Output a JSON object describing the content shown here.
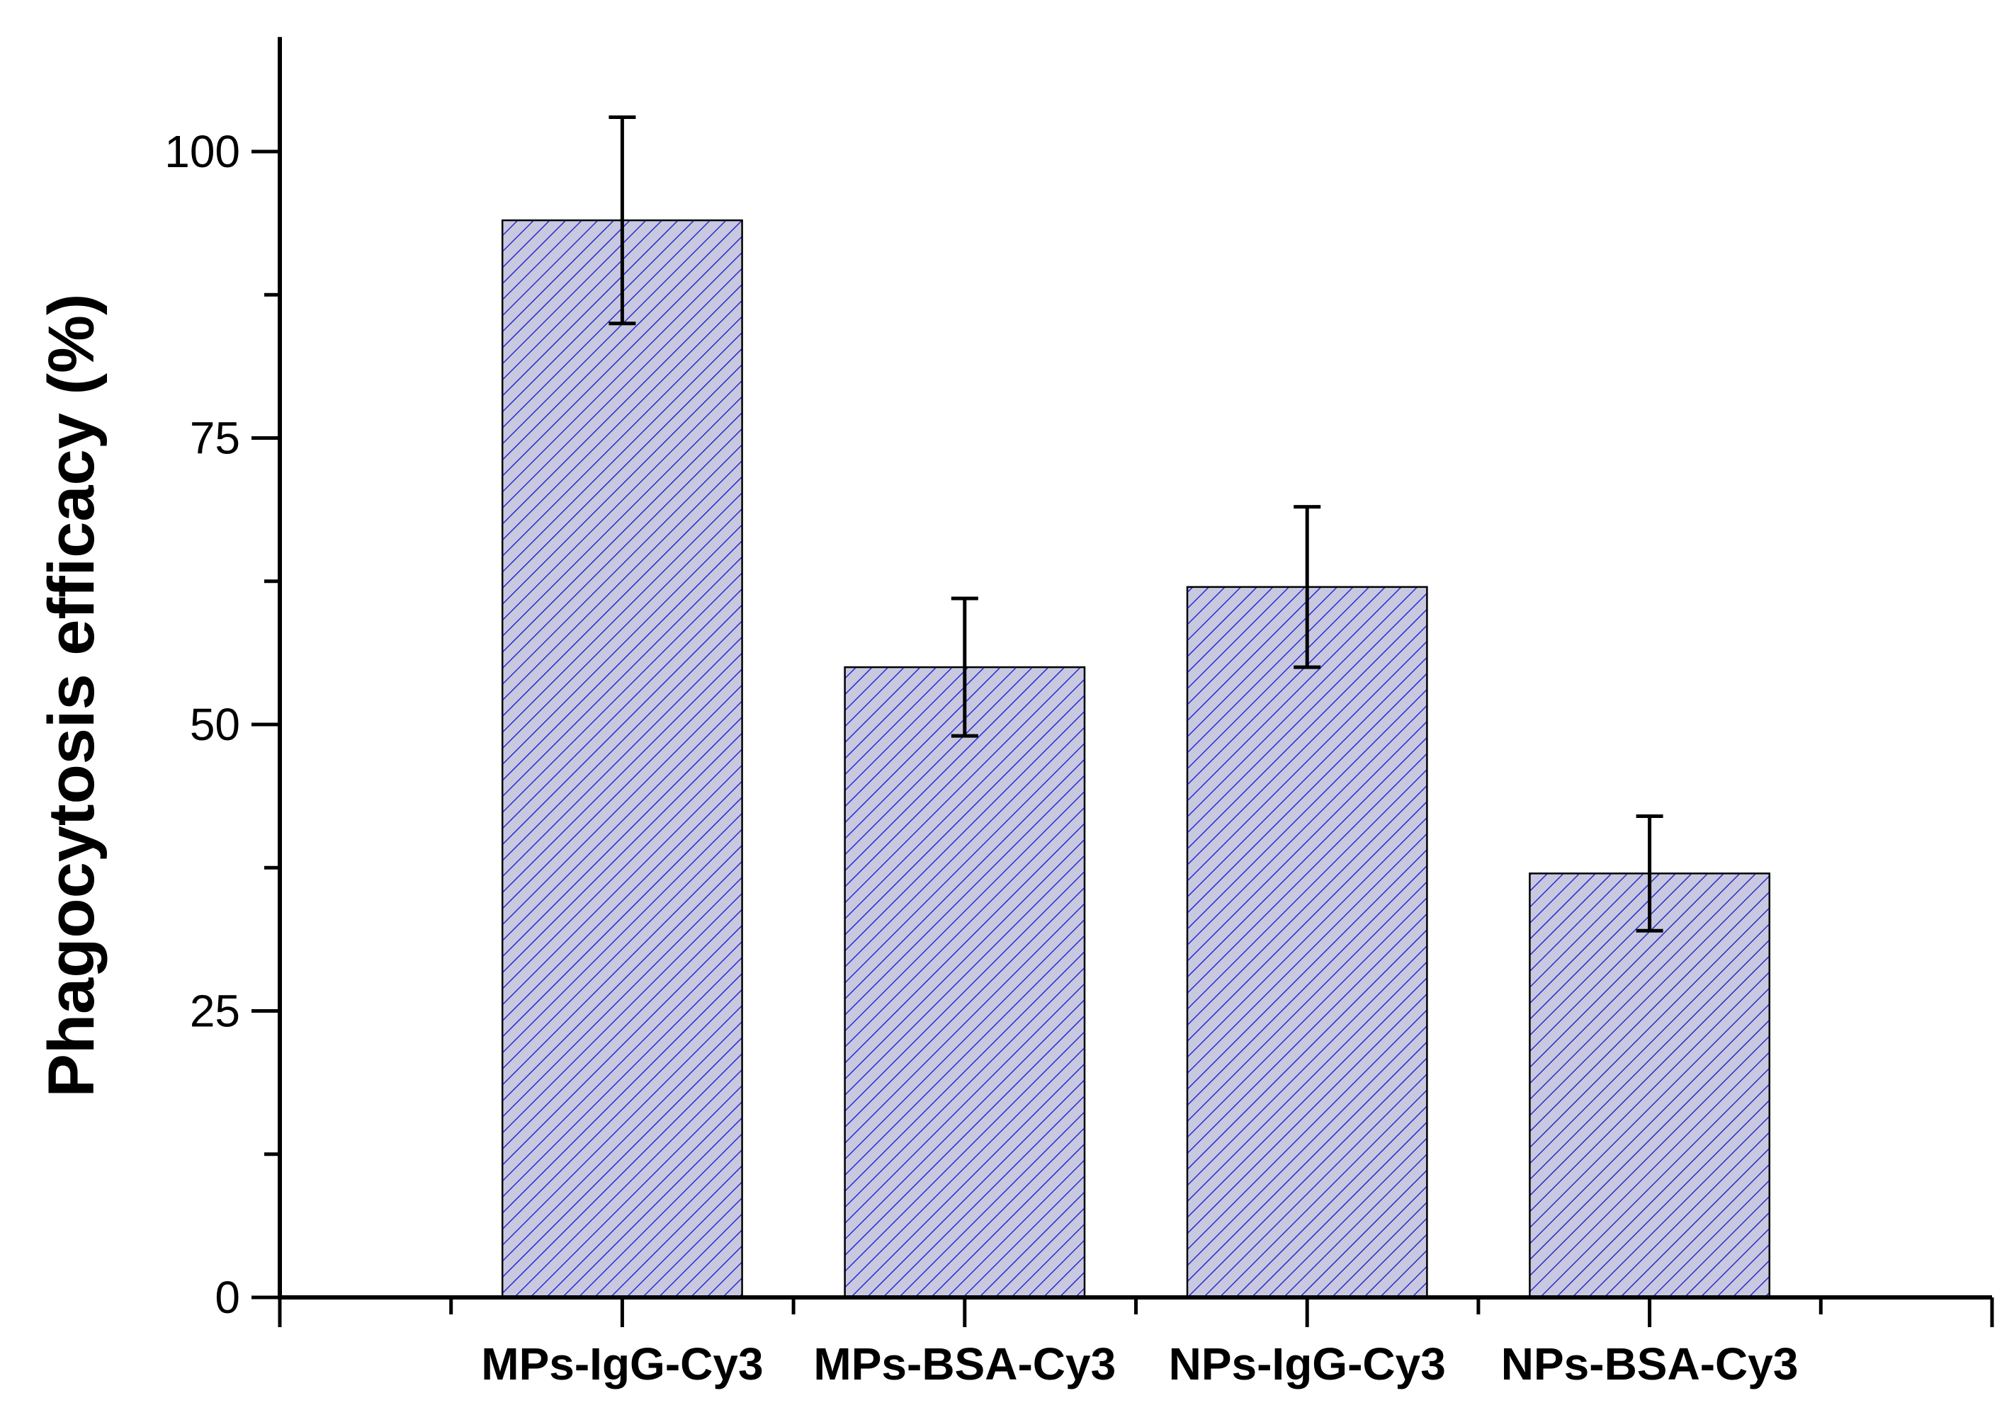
{
  "chart_data": {
    "type": "bar",
    "title": "",
    "xlabel": "",
    "ylabel": "Phagocytosis efficacy (%)",
    "categories": [
      "MPs-IgG-Cy3",
      "MPs-BSA-Cy3",
      "NPs-IgG-Cy3",
      "NPs-BSA-Cy3"
    ],
    "values": [
      94,
      55,
      62,
      37
    ],
    "errors": [
      9,
      6,
      7,
      5
    ],
    "ylim": [
      0,
      110
    ],
    "xlim": [
      0,
      5
    ],
    "x_positions": [
      1,
      2,
      3,
      4
    ],
    "bar_width": 0.7,
    "yticks": [
      0,
      25,
      50,
      75,
      100
    ],
    "yticks_minor": [
      12.5,
      37.5,
      62.5,
      87.5
    ],
    "xticks_major": [
      1,
      2,
      3,
      4
    ],
    "xticks_minor": [
      0.5,
      1.5,
      2.5,
      3.5,
      4.5
    ],
    "grid": false,
    "bar_fill": "#c8c8e0",
    "hatch_color": "#2a2ad0",
    "hatch": "diagonal"
  }
}
